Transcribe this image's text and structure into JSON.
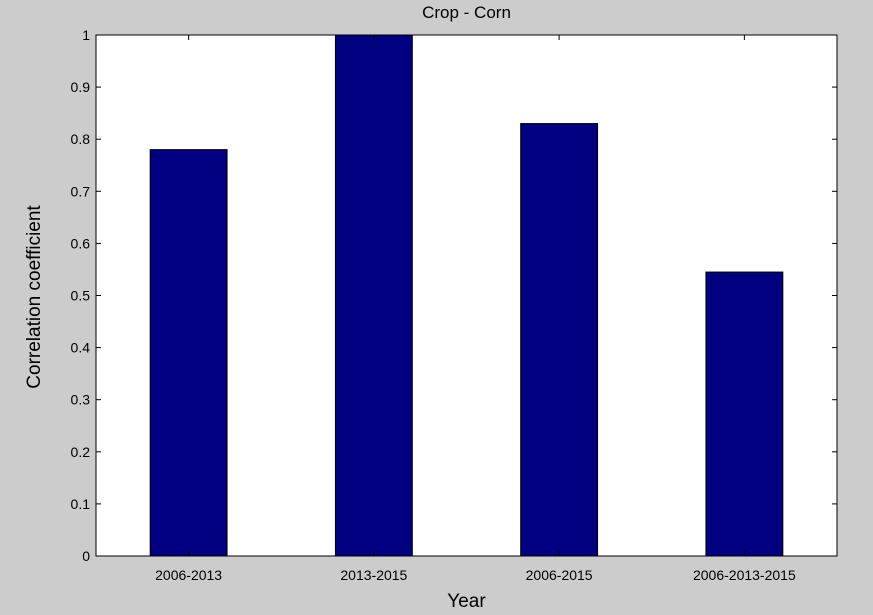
{
  "figure": {
    "background_color": "#cccccc",
    "axes_color": "#ffffff"
  },
  "chart_data": {
    "type": "bar",
    "title": "Crop - Corn",
    "xlabel": "Year",
    "ylabel": "Correlation coefficient",
    "categories": [
      "2006-2013",
      "2013-2015",
      "2006-2015",
      "2006-2013-2015"
    ],
    "values": [
      0.78,
      1.0,
      0.83,
      0.545
    ],
    "ylim": [
      0,
      1
    ],
    "yticks": [
      0,
      0.1,
      0.2,
      0.3,
      0.4,
      0.5,
      0.6,
      0.7,
      0.8,
      0.9,
      1
    ],
    "ytick_labels": [
      "0",
      "0.1",
      "0.2",
      "0.3",
      "0.4",
      "0.5",
      "0.6",
      "0.7",
      "0.8",
      "0.9",
      "1"
    ],
    "bar_color": "#000080",
    "grid": false,
    "legend": "none"
  }
}
